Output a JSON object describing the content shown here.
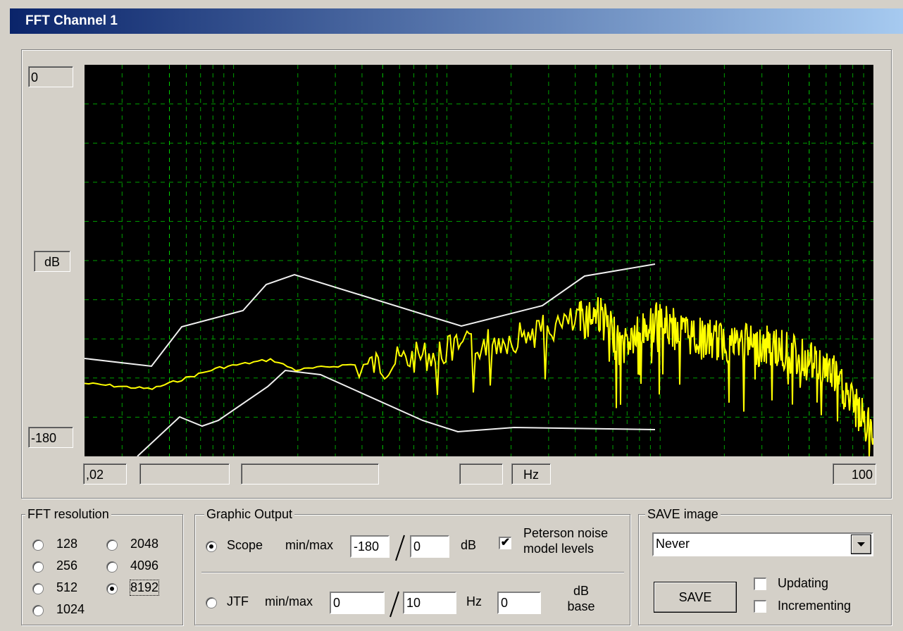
{
  "window": {
    "title": "FFT Channel 1"
  },
  "plot": {
    "y_max": "0",
    "y_unit": "dB",
    "y_min": "-180",
    "x_min": ",02",
    "x_unit": "Hz",
    "x_max": "100"
  },
  "fft_resolution": {
    "label": "FFT resolution",
    "options": [
      "128",
      "256",
      "512",
      "1024",
      "2048",
      "4096",
      "8192"
    ],
    "selected": 6
  },
  "graphic_output": {
    "label": "Graphic Output",
    "scope": {
      "label": "Scope",
      "range_label": "min/max",
      "min": "-180",
      "max": "0",
      "unit": "dB",
      "selected": true
    },
    "peterson": {
      "label": [
        "Peterson noise",
        "model levels"
      ],
      "checked": true
    },
    "jtf": {
      "label": "JTF",
      "range_label": "min/max",
      "min": "0",
      "max": "10",
      "unit": "Hz",
      "base": "0",
      "base_label": [
        "dB",
        "base"
      ],
      "selected": false
    }
  },
  "save_image": {
    "label": "SAVE image",
    "mode": "Never",
    "button": "SAVE",
    "options": [
      {
        "label": "Updating",
        "checked": false
      },
      {
        "label": "Incrementing",
        "checked": false
      }
    ]
  }
}
